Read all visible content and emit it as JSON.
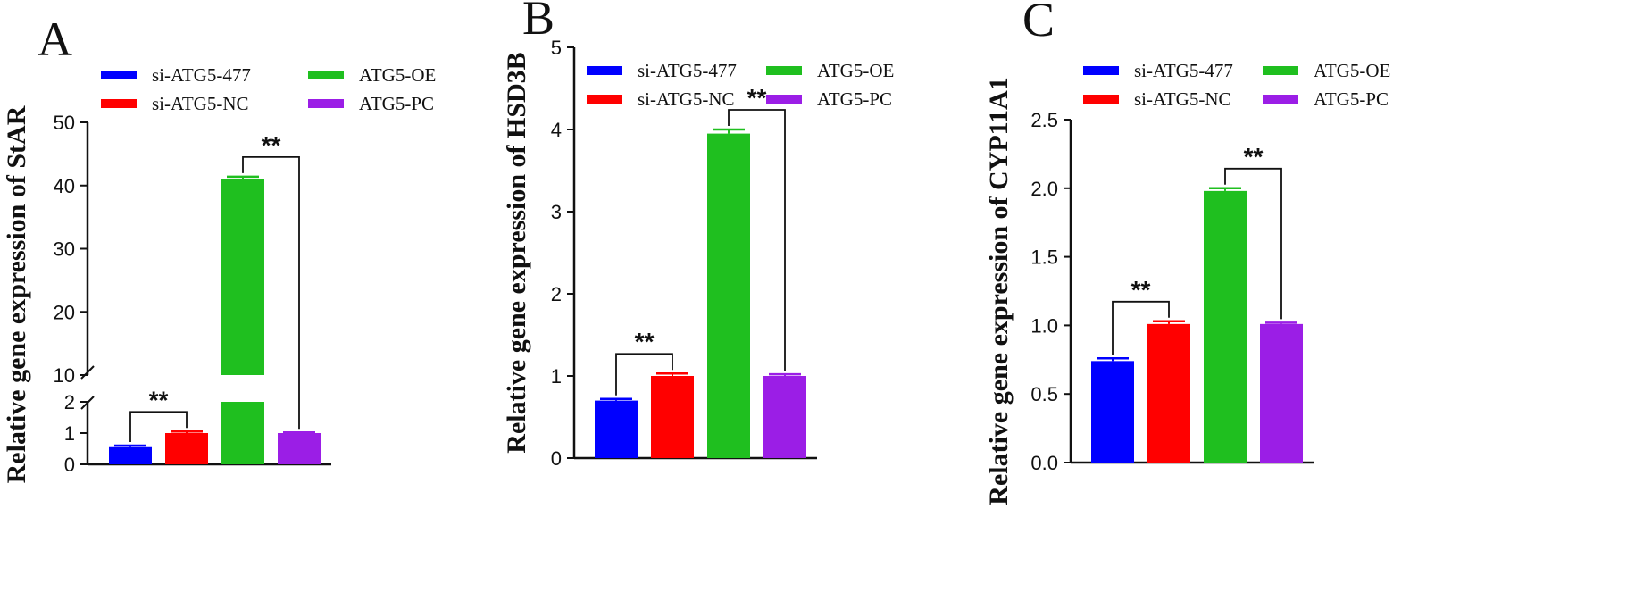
{
  "legend": [
    {
      "label": "si-ATG5-477",
      "color": "#0000ff"
    },
    {
      "label": "si-ATG5-NC",
      "color": "#ff0000"
    },
    {
      "label": "ATG5-OE",
      "color": "#1fbf1f"
    },
    {
      "label": "ATG5-PC",
      "color": "#9b1ee6"
    }
  ],
  "chart_data": [
    {
      "panel": "A",
      "type": "bar",
      "ylabel": "Relative gene expression of StAR",
      "categories": [
        "si-ATG5-477",
        "si-ATG5-NC",
        "ATG5-OE",
        "ATG5-PC"
      ],
      "values": [
        0.55,
        1.0,
        41.0,
        1.0
      ],
      "errors": [
        0.05,
        0.05,
        0.4,
        0.02
      ],
      "axis_break": {
        "lower": [
          0,
          2
        ],
        "upper": [
          10,
          50
        ]
      },
      "yticks": [
        "0",
        "1",
        "2",
        "10",
        "20",
        "30",
        "40",
        "50"
      ],
      "significance": [
        {
          "from": 0,
          "to": 1,
          "label": "**"
        },
        {
          "from": 2,
          "to": 3,
          "label": "**"
        }
      ]
    },
    {
      "panel": "B",
      "type": "bar",
      "ylabel": "Relative gene expression of HSD3B",
      "categories": [
        "si-ATG5-477",
        "si-ATG5-NC",
        "ATG5-OE",
        "ATG5-PC"
      ],
      "values": [
        0.7,
        1.0,
        3.95,
        1.0
      ],
      "errors": [
        0.02,
        0.03,
        0.05,
        0.02
      ],
      "ylim": [
        0,
        5
      ],
      "yticks": [
        "0",
        "1",
        "2",
        "3",
        "4",
        "5"
      ],
      "significance": [
        {
          "from": 0,
          "to": 1,
          "label": "**"
        },
        {
          "from": 2,
          "to": 3,
          "label": "**"
        }
      ]
    },
    {
      "panel": "C",
      "type": "bar",
      "ylabel": "Relative gene expression of CYP11A1",
      "categories": [
        "si-ATG5-477",
        "si-ATG5-NC",
        "ATG5-OE",
        "ATG5-PC"
      ],
      "values": [
        0.74,
        1.01,
        1.98,
        1.01
      ],
      "errors": [
        0.02,
        0.02,
        0.02,
        0.01
      ],
      "ylim": [
        0,
        2.5
      ],
      "yticks": [
        "0.0",
        "0.5",
        "1.0",
        "1.5",
        "2.0",
        "2.5"
      ],
      "significance": [
        {
          "from": 0,
          "to": 1,
          "label": "**"
        },
        {
          "from": 2,
          "to": 3,
          "label": "**"
        }
      ]
    }
  ]
}
